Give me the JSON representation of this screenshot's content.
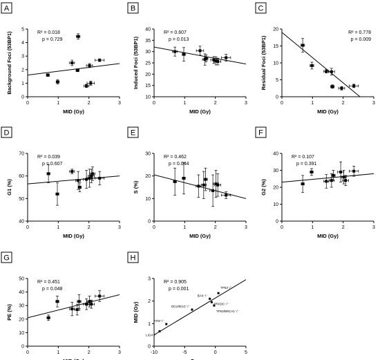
{
  "figure": {
    "panels": [
      {
        "letter": "A",
        "xlabel": "MID (Gy)",
        "ylabel": "Background Foci (53BP1)",
        "xlim": [
          0,
          3
        ],
        "ylim": [
          0,
          5
        ],
        "xticks": [
          0,
          1,
          2,
          3
        ],
        "yticks": [
          0,
          1,
          2,
          3,
          4,
          5
        ],
        "r2": "R² = 0.018",
        "p": "p = 0.729",
        "fit": [
          [
            0,
            1.6
          ],
          [
            3,
            2.45
          ]
        ],
        "points": [
          {
            "x": 0.66,
            "y": 1.6,
            "ex": 0.05,
            "ey": 0.1
          },
          {
            "x": 0.98,
            "y": 1.1,
            "ex": 0.05,
            "ey": 0.15
          },
          {
            "x": 1.45,
            "y": 2.5,
            "ex": 0.08,
            "ey": 0.2
          },
          {
            "x": 1.65,
            "y": 4.45,
            "ex": 0.06,
            "ey": 0.2
          },
          {
            "x": 1.63,
            "y": 1.95,
            "ex": 0.05,
            "ey": 0.1
          },
          {
            "x": 1.92,
            "y": 0.8,
            "ex": 0.08,
            "ey": 0.12
          },
          {
            "x": 2.02,
            "y": 2.3,
            "ex": 0.1,
            "ey": 0.15
          },
          {
            "x": 2.06,
            "y": 1.0,
            "ex": 0.12,
            "ey": 0.15
          },
          {
            "x": 2.35,
            "y": 2.7,
            "ex": 0.15,
            "ey": 0.1
          }
        ]
      },
      {
        "letter": "B",
        "xlabel": "MID (Gy)",
        "ylabel": "Induced Foci (53BP1)",
        "xlim": [
          0,
          3
        ],
        "ylim": [
          10,
          40
        ],
        "xticks": [
          0,
          1,
          2,
          3
        ],
        "yticks": [
          10,
          15,
          20,
          25,
          30,
          35,
          40
        ],
        "r2": "R² = 0.607",
        "p": "p = 0.013",
        "fit": [
          [
            0,
            32
          ],
          [
            3,
            24.5
          ]
        ],
        "points": [
          {
            "x": 0.68,
            "y": 30.0,
            "ex": 0.08,
            "ey": 2.0
          },
          {
            "x": 0.97,
            "y": 28.8,
            "ex": 0.05,
            "ey": 3.0
          },
          {
            "x": 1.5,
            "y": 30.4,
            "ex": 0.12,
            "ey": 2.0
          },
          {
            "x": 1.66,
            "y": 26.5,
            "ex": 0.08,
            "ey": 2.5
          },
          {
            "x": 1.7,
            "y": 27.0,
            "ex": 0.06,
            "ey": 1.5
          },
          {
            "x": 1.95,
            "y": 26.3,
            "ex": 0.1,
            "ey": 1.5
          },
          {
            "x": 2.02,
            "y": 25.9,
            "ex": 0.08,
            "ey": 1.8
          },
          {
            "x": 2.08,
            "y": 25.6,
            "ex": 0.1,
            "ey": 1.5
          },
          {
            "x": 2.35,
            "y": 27.3,
            "ex": 0.15,
            "ey": 1.5
          }
        ]
      },
      {
        "letter": "C",
        "xlabel": "MID (Gy)",
        "ylabel": "Residual Foci (53BP1)",
        "xlim": [
          0,
          3
        ],
        "ylim": [
          0,
          20
        ],
        "xticks": [
          0,
          1,
          2,
          3
        ],
        "yticks": [
          0,
          5,
          10,
          15,
          20
        ],
        "r2": "R² = 0.778",
        "p": "p = 0.009",
        "fit": [
          [
            0,
            19
          ],
          [
            2.55,
            0
          ]
        ],
        "points": [
          {
            "x": 0.68,
            "y": 15.2,
            "ex": 0.06,
            "ey": 2.0
          },
          {
            "x": 0.98,
            "y": 9.2,
            "ex": 0.06,
            "ey": 1.0
          },
          {
            "x": 1.45,
            "y": 7.5,
            "ex": 0.08,
            "ey": 0.5
          },
          {
            "x": 1.62,
            "y": 7.4,
            "ex": 0.1,
            "ey": 1.0
          },
          {
            "x": 1.65,
            "y": 3.0,
            "ex": 0.06,
            "ey": 0.5
          },
          {
            "x": 1.95,
            "y": 2.5,
            "ex": 0.1,
            "ey": 0.5
          },
          {
            "x": 2.35,
            "y": 3.2,
            "ex": 0.15,
            "ey": 0.5
          }
        ]
      },
      {
        "letter": "D",
        "xlabel": "MID (Gy)",
        "ylabel": "G1 (%)",
        "xlim": [
          0,
          3
        ],
        "ylim": [
          40,
          70
        ],
        "xticks": [
          0,
          1,
          2,
          3
        ],
        "yticks": [
          40,
          50,
          60,
          70
        ],
        "r2": "R² = 0.039",
        "p": "p = 0.607",
        "fit": [
          [
            0,
            56.5
          ],
          [
            3,
            60
          ]
        ],
        "points": [
          {
            "x": 0.68,
            "y": 61.0,
            "ex": 0.05,
            "ey": 4.0
          },
          {
            "x": 0.97,
            "y": 52.0,
            "ex": 0.05,
            "ey": 5.0
          },
          {
            "x": 1.45,
            "y": 62.0,
            "ex": 0.08,
            "ey": 1.0
          },
          {
            "x": 1.65,
            "y": 58.0,
            "ex": 0.08,
            "ey": 4.0
          },
          {
            "x": 1.7,
            "y": 55.0,
            "ex": 0.05,
            "ey": 2.0
          },
          {
            "x": 1.92,
            "y": 58.5,
            "ex": 0.1,
            "ey": 4.0
          },
          {
            "x": 2.02,
            "y": 59.0,
            "ex": 0.08,
            "ey": 4.0
          },
          {
            "x": 2.08,
            "y": 60.0,
            "ex": 0.1,
            "ey": 3.0
          },
          {
            "x": 2.12,
            "y": 61.0,
            "ex": 0.08,
            "ey": 3.0
          },
          {
            "x": 2.35,
            "y": 59.0,
            "ex": 0.15,
            "ey": 3.0
          }
        ]
      },
      {
        "letter": "E",
        "xlabel": "MID (Gy)",
        "ylabel": "S (%)",
        "xlim": [
          0,
          3
        ],
        "ylim": [
          0,
          30
        ],
        "xticks": [
          0,
          1,
          2,
          3
        ],
        "yticks": [
          0,
          10,
          20,
          30
        ],
        "r2": "R² = 0.462",
        "p": "p = 0.044",
        "fit": [
          [
            0,
            20.5
          ],
          [
            3,
            10
          ]
        ],
        "points": [
          {
            "x": 0.68,
            "y": 17.5,
            "ex": 0.05,
            "ey": 6.0
          },
          {
            "x": 0.97,
            "y": 19.0,
            "ex": 0.05,
            "ey": 7.0
          },
          {
            "x": 1.45,
            "y": 15.5,
            "ex": 0.08,
            "ey": 5.0
          },
          {
            "x": 1.62,
            "y": 16.0,
            "ex": 0.08,
            "ey": 6.0
          },
          {
            "x": 1.68,
            "y": 18.5,
            "ex": 0.06,
            "ey": 5.0
          },
          {
            "x": 1.92,
            "y": 13.5,
            "ex": 0.1,
            "ey": 7.0
          },
          {
            "x": 2.02,
            "y": 16.5,
            "ex": 0.08,
            "ey": 6.0
          },
          {
            "x": 2.08,
            "y": 16.0,
            "ex": 0.1,
            "ey": 5.0
          },
          {
            "x": 2.35,
            "y": 11.5,
            "ex": 0.15,
            "ey": 1.5
          }
        ]
      },
      {
        "letter": "F",
        "xlabel": "MID (Gy)",
        "ylabel": "G2 (%)",
        "xlim": [
          0,
          3
        ],
        "ylim": [
          0,
          40
        ],
        "xticks": [
          0,
          1,
          2,
          3
        ],
        "yticks": [
          0,
          10,
          20,
          30,
          40
        ],
        "r2": "R² = 0.107",
        "p": "p = 0.391",
        "fit": [
          [
            0,
            23
          ],
          [
            3,
            28
          ]
        ],
        "points": [
          {
            "x": 0.68,
            "y": 22.0,
            "ex": 0.05,
            "ey": 5.0
          },
          {
            "x": 0.97,
            "y": 29.0,
            "ex": 0.05,
            "ey": 2.0
          },
          {
            "x": 1.45,
            "y": 23.5,
            "ex": 0.08,
            "ey": 4.0
          },
          {
            "x": 1.62,
            "y": 24.0,
            "ex": 0.08,
            "ey": 4.0
          },
          {
            "x": 1.68,
            "y": 27.0,
            "ex": 0.06,
            "ey": 3.0
          },
          {
            "x": 1.92,
            "y": 29.0,
            "ex": 0.1,
            "ey": 6.0
          },
          {
            "x": 2.02,
            "y": 26.0,
            "ex": 0.08,
            "ey": 4.0
          },
          {
            "x": 2.08,
            "y": 24.0,
            "ex": 0.1,
            "ey": 3.0
          },
          {
            "x": 2.35,
            "y": 29.5,
            "ex": 0.15,
            "ey": 3.0
          }
        ]
      },
      {
        "letter": "G",
        "xlabel": "MID (Gy)",
        "ylabel": "PE (%)",
        "xlim": [
          0,
          3
        ],
        "ylim": [
          0,
          50
        ],
        "xticks": [
          0,
          1,
          2,
          3
        ],
        "yticks": [
          0,
          10,
          20,
          30,
          40,
          50
        ],
        "r2": "R² = 0.451",
        "p": "p = 0.048",
        "fit": [
          [
            0,
            21
          ],
          [
            3,
            38
          ]
        ],
        "points": [
          {
            "x": 0.68,
            "y": 21.0,
            "ex": 0.05,
            "ey": 2.0
          },
          {
            "x": 0.97,
            "y": 33.0,
            "ex": 0.05,
            "ey": 4.0
          },
          {
            "x": 1.45,
            "y": 27.5,
            "ex": 0.08,
            "ey": 5.0
          },
          {
            "x": 1.62,
            "y": 27.0,
            "ex": 0.08,
            "ey": 4.0
          },
          {
            "x": 1.68,
            "y": 33.0,
            "ex": 0.06,
            "ey": 5.0
          },
          {
            "x": 1.92,
            "y": 31.0,
            "ex": 0.1,
            "ey": 4.0
          },
          {
            "x": 2.02,
            "y": 33.0,
            "ex": 0.08,
            "ey": 4.0
          },
          {
            "x": 2.08,
            "y": 31.0,
            "ex": 0.1,
            "ey": 3.0
          },
          {
            "x": 2.35,
            "y": 37.0,
            "ex": 0.15,
            "ey": 4.0
          }
        ]
      },
      {
        "letter": "H",
        "xlabel": "Z-score",
        "ylabel": "MID (Gy)",
        "xlim": [
          -10,
          5
        ],
        "ylim": [
          0,
          3
        ],
        "xticks": [
          -10,
          -5,
          0,
          5
        ],
        "yticks": [
          0,
          1,
          2,
          3
        ],
        "r2": "R² = 0.905",
        "p": "p = 0.001",
        "fit": [
          [
            -10,
            0.5
          ],
          [
            5,
            2.95
          ]
        ],
        "points": [
          {
            "x": -9.1,
            "y": 0.66,
            "label": "LIG4⁻/⁻"
          },
          {
            "x": -8.0,
            "y": 0.98,
            "label": "ATM⁻/⁻"
          },
          {
            "x": -3.8,
            "y": 1.62,
            "label": "DCLRE1C⁻/⁻"
          },
          {
            "x": -0.9,
            "y": 2.1,
            "label": "BAX⁻/⁻"
          },
          {
            "x": -0.6,
            "y": 1.95,
            "label": "PRKDC⁻/⁻"
          },
          {
            "x": -0.2,
            "y": 1.8,
            "label": "TP53/BRCA1⁻/⁻"
          },
          {
            "x": 0.5,
            "y": 2.35,
            "label": "TP53⁻/⁻"
          }
        ]
      }
    ]
  },
  "chart_data": [
    {
      "type": "scatter",
      "panel": "A",
      "xlabel": "MID (Gy)",
      "ylabel": "Background Foci (53BP1)",
      "xlim": [
        0,
        3
      ],
      "ylim": [
        0,
        5
      ],
      "x": [
        0.66,
        0.98,
        1.45,
        1.65,
        1.63,
        1.92,
        2.02,
        2.06,
        2.35
      ],
      "y": [
        1.6,
        1.1,
        2.5,
        4.45,
        1.95,
        0.8,
        2.3,
        1.0,
        2.7
      ],
      "r2": 0.018,
      "p": 0.729
    },
    {
      "type": "scatter",
      "panel": "B",
      "xlabel": "MID (Gy)",
      "ylabel": "Induced Foci (53BP1)",
      "xlim": [
        0,
        3
      ],
      "ylim": [
        10,
        40
      ],
      "x": [
        0.68,
        0.97,
        1.5,
        1.66,
        1.7,
        1.95,
        2.02,
        2.08,
        2.35
      ],
      "y": [
        30.0,
        28.8,
        30.4,
        26.5,
        27.0,
        26.3,
        25.9,
        25.6,
        27.3
      ],
      "r2": 0.607,
      "p": 0.013
    },
    {
      "type": "scatter",
      "panel": "C",
      "xlabel": "MID (Gy)",
      "ylabel": "Residual Foci (53BP1)",
      "xlim": [
        0,
        3
      ],
      "ylim": [
        0,
        20
      ],
      "x": [
        0.68,
        0.98,
        1.45,
        1.62,
        1.65,
        1.95,
        2.35
      ],
      "y": [
        15.2,
        9.2,
        7.5,
        7.4,
        3.0,
        2.5,
        3.2
      ],
      "r2": 0.778,
      "p": 0.009
    },
    {
      "type": "scatter",
      "panel": "D",
      "xlabel": "MID (Gy)",
      "ylabel": "G1 (%)",
      "xlim": [
        0,
        3
      ],
      "ylim": [
        40,
        70
      ],
      "x": [
        0.68,
        0.97,
        1.45,
        1.65,
        1.7,
        1.92,
        2.02,
        2.08,
        2.12,
        2.35
      ],
      "y": [
        61.0,
        52.0,
        62.0,
        58.0,
        55.0,
        58.5,
        59.0,
        60.0,
        61.0,
        59.0
      ],
      "r2": 0.039,
      "p": 0.607
    },
    {
      "type": "scatter",
      "panel": "E",
      "xlabel": "MID (Gy)",
      "ylabel": "S (%)",
      "xlim": [
        0,
        3
      ],
      "ylim": [
        0,
        30
      ],
      "x": [
        0.68,
        0.97,
        1.45,
        1.62,
        1.68,
        1.92,
        2.02,
        2.08,
        2.35
      ],
      "y": [
        17.5,
        19.0,
        15.5,
        16.0,
        18.5,
        13.5,
        16.5,
        16.0,
        11.5
      ],
      "r2": 0.462,
      "p": 0.044
    },
    {
      "type": "scatter",
      "panel": "F",
      "xlabel": "MID (Gy)",
      "ylabel": "G2 (%)",
      "xlim": [
        0,
        3
      ],
      "ylim": [
        0,
        40
      ],
      "x": [
        0.68,
        0.97,
        1.45,
        1.62,
        1.68,
        1.92,
        2.02,
        2.08,
        2.35
      ],
      "y": [
        22.0,
        29.0,
        23.5,
        24.0,
        27.0,
        29.0,
        26.0,
        24.0,
        29.5
      ],
      "r2": 0.107,
      "p": 0.391
    },
    {
      "type": "scatter",
      "panel": "G",
      "xlabel": "MID (Gy)",
      "ylabel": "PE (%)",
      "xlim": [
        0,
        3
      ],
      "ylim": [
        0,
        50
      ],
      "x": [
        0.68,
        0.97,
        1.45,
        1.62,
        1.68,
        1.92,
        2.02,
        2.08,
        2.35
      ],
      "y": [
        21.0,
        33.0,
        27.5,
        27.0,
        33.0,
        31.0,
        33.0,
        31.0,
        37.0
      ],
      "r2": 0.451,
      "p": 0.048
    },
    {
      "type": "scatter",
      "panel": "H",
      "xlabel": "Z-score",
      "ylabel": "MID (Gy)",
      "xlim": [
        -10,
        5
      ],
      "ylim": [
        0,
        3
      ],
      "x": [
        -9.1,
        -8.0,
        -3.8,
        -0.9,
        -0.6,
        -0.2,
        0.5
      ],
      "y": [
        0.66,
        0.98,
        1.62,
        2.1,
        1.95,
        1.8,
        2.35
      ],
      "labels": [
        "LIG4⁻/⁻",
        "ATM⁻/⁻",
        "DCLRE1C⁻/⁻",
        "BAX⁻/⁻",
        "PRKDC⁻/⁻",
        "TP53/BRCA1⁻/⁻",
        "TP53⁻/⁻"
      ],
      "r2": 0.905,
      "p": 0.001
    }
  ]
}
